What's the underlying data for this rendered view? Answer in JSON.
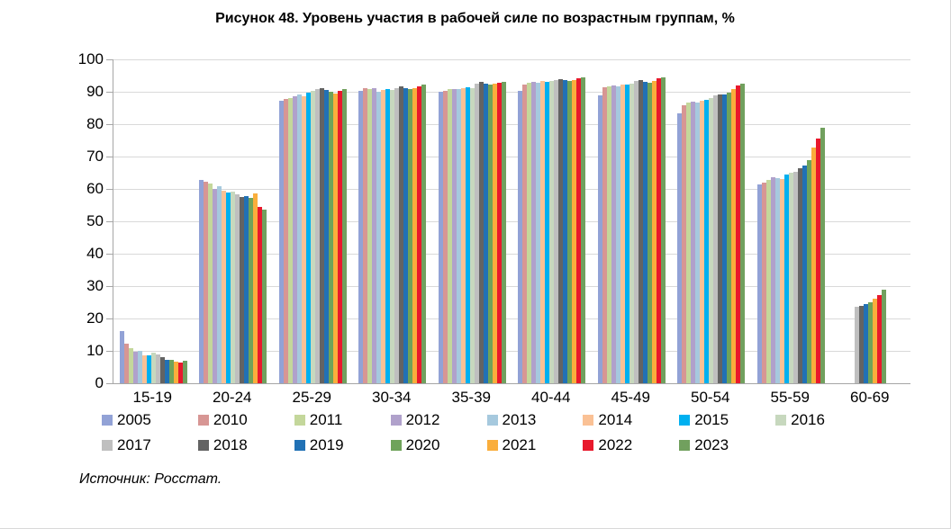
{
  "title": "Рисунок 48. Уровень участия в рабочей силе по возрастным группам, %",
  "source": "Источник: Росстат.",
  "chart_data": {
    "type": "bar",
    "title": "Рисунок 48. Уровень участия в рабочей силе по возрастным группам, %",
    "xlabel": "",
    "ylabel": "",
    "ylim": [
      0,
      100
    ],
    "yticks": [
      0,
      10,
      20,
      30,
      40,
      50,
      60,
      70,
      80,
      90,
      100
    ],
    "grid": true,
    "legend_position": "bottom",
    "categories": [
      "15-19",
      "20-24",
      "25-29",
      "30-34",
      "35-39",
      "40-44",
      "45-49",
      "50-54",
      "55-59",
      "60-69"
    ],
    "series": [
      {
        "name": "2005",
        "color": "#92A2D6",
        "values": [
          16.1,
          62.8,
          87.3,
          90.4,
          89.9,
          90.3,
          89.0,
          83.3,
          61.5,
          null
        ]
      },
      {
        "name": "2010",
        "color": "#D79694",
        "values": [
          12.2,
          62.2,
          87.8,
          91.1,
          90.3,
          92.3,
          91.3,
          85.9,
          62.0,
          null
        ]
      },
      {
        "name": "2011",
        "color": "#C4D79B",
        "values": [
          10.8,
          61.8,
          88.1,
          90.8,
          90.7,
          92.9,
          91.8,
          86.6,
          62.9,
          null
        ]
      },
      {
        "name": "2012",
        "color": "#B0A1CB",
        "values": [
          9.7,
          60.1,
          88.7,
          91.0,
          90.9,
          93.0,
          92.0,
          87.0,
          63.5,
          null
        ]
      },
      {
        "name": "2013",
        "color": "#A6C9DE",
        "values": [
          9.9,
          60.7,
          89.2,
          90.1,
          90.7,
          92.9,
          91.8,
          86.6,
          63.2,
          null
        ]
      },
      {
        "name": "2014",
        "color": "#FAC195",
        "values": [
          8.7,
          59.5,
          88.5,
          90.5,
          91.2,
          93.2,
          92.2,
          87.2,
          63.0,
          null
        ]
      },
      {
        "name": "2015",
        "color": "#00B0F0",
        "values": [
          8.5,
          58.9,
          89.6,
          90.8,
          91.5,
          93.1,
          92.2,
          87.5,
          64.4,
          null
        ]
      },
      {
        "name": "2016",
        "color": "#C7D8BE",
        "values": [
          9.4,
          59.2,
          90.2,
          90.6,
          91.2,
          93.3,
          92.5,
          88.1,
          64.9,
          null
        ]
      },
      {
        "name": "2017",
        "color": "#BFBFBF",
        "values": [
          9.0,
          58.4,
          90.8,
          91.2,
          92.5,
          93.7,
          93.2,
          88.9,
          65.4,
          23.7
        ]
      },
      {
        "name": "2018",
        "color": "#636363",
        "values": [
          8.1,
          57.5,
          91.1,
          91.7,
          93.0,
          93.9,
          93.5,
          89.3,
          66.3,
          24.0
        ]
      },
      {
        "name": "2019",
        "color": "#2171B5",
        "values": [
          7.2,
          57.8,
          90.6,
          91.0,
          92.5,
          93.5,
          93.1,
          89.1,
          67.2,
          24.5
        ]
      },
      {
        "name": "2020",
        "color": "#6FA35A",
        "values": [
          7.2,
          57.2,
          89.9,
          90.7,
          92.1,
          93.3,
          92.9,
          89.6,
          68.9,
          25.0
        ]
      },
      {
        "name": "2021",
        "color": "#FAAE3C",
        "values": [
          6.7,
          58.6,
          89.4,
          91.2,
          92.5,
          93.7,
          93.4,
          90.7,
          72.8,
          26.2
        ]
      },
      {
        "name": "2022",
        "color": "#E8192C",
        "values": [
          6.3,
          54.4,
          90.2,
          91.8,
          92.8,
          94.3,
          94.1,
          91.9,
          75.5,
          27.3
        ]
      },
      {
        "name": "2023",
        "color": "#71A05E",
        "values": [
          7.0,
          53.6,
          90.8,
          92.1,
          93.0,
          94.5,
          94.4,
          92.4,
          78.9,
          29.0
        ]
      }
    ]
  }
}
